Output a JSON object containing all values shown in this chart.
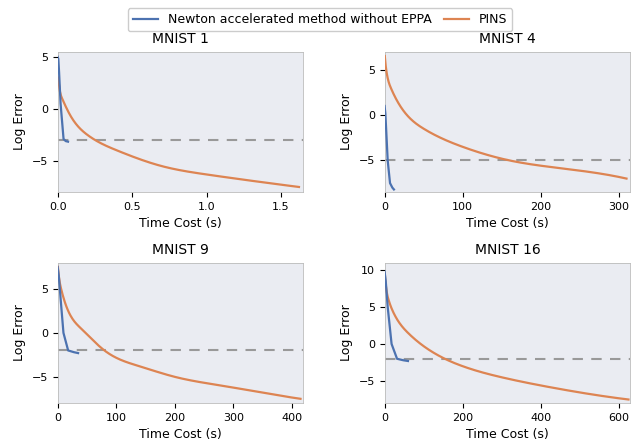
{
  "panels": [
    {
      "title": "MNIST 1",
      "xlim": [
        0,
        1.65
      ],
      "ylim": [
        -8,
        5.5
      ],
      "xticks": [
        0.0,
        0.5,
        1.0,
        1.5
      ],
      "yticks": [
        -5,
        0,
        5
      ],
      "dashed_y": -3.0,
      "blue_x": [
        0.0,
        0.005,
        0.01,
        0.02,
        0.04,
        0.055,
        0.07
      ],
      "blue_y": [
        5.0,
        4.8,
        3.5,
        0.5,
        -2.9,
        -3.1,
        -3.15
      ],
      "orange_x": [
        0.003,
        0.005,
        0.01,
        0.03,
        0.08,
        0.2,
        0.4,
        0.7,
        1.0,
        1.3,
        1.62
      ],
      "orange_y": [
        3.0,
        2.8,
        2.2,
        1.0,
        -0.5,
        -2.5,
        -4.0,
        -5.5,
        -6.3,
        -6.9,
        -7.5
      ]
    },
    {
      "title": "MNIST 4",
      "xlim": [
        0,
        315
      ],
      "ylim": [
        -8.5,
        7
      ],
      "xticks": [
        0,
        100,
        200,
        300
      ],
      "yticks": [
        -5,
        0,
        5
      ],
      "dashed_y": -5.0,
      "blue_x": [
        0.0,
        1,
        2,
        4,
        7,
        10,
        12
      ],
      "blue_y": [
        1.0,
        0.2,
        -1.5,
        -5.0,
        -7.5,
        -8.0,
        -8.2
      ],
      "orange_x": [
        0.3,
        1,
        3,
        8,
        20,
        50,
        100,
        160,
        220,
        280,
        310
      ],
      "orange_y": [
        6.5,
        5.8,
        4.5,
        3.0,
        1.0,
        -1.5,
        -3.5,
        -5.0,
        -5.8,
        -6.5,
        -7.0
      ]
    },
    {
      "title": "MNIST 9",
      "xlim": [
        0,
        420
      ],
      "ylim": [
        -8,
        8
      ],
      "xticks": [
        0,
        100,
        200,
        300,
        400
      ],
      "yticks": [
        -5,
        0,
        5
      ],
      "dashed_y": -2.0,
      "blue_x": [
        0.0,
        2,
        5,
        10,
        18,
        28,
        35
      ],
      "blue_y": [
        7.5,
        6.5,
        4.0,
        0.0,
        -2.0,
        -2.2,
        -2.3
      ],
      "orange_x": [
        0.5,
        2,
        6,
        15,
        40,
        80,
        140,
        200,
        280,
        350,
        415
      ],
      "orange_y": [
        7.5,
        6.5,
        5.0,
        3.0,
        0.5,
        -2.0,
        -3.8,
        -5.0,
        -6.0,
        -6.8,
        -7.5
      ]
    },
    {
      "title": "MNIST 16",
      "xlim": [
        0,
        630
      ],
      "ylim": [
        -8,
        11
      ],
      "xticks": [
        0,
        200,
        400,
        600
      ],
      "yticks": [
        -5,
        0,
        5,
        10
      ],
      "dashed_y": -2.0,
      "blue_x": [
        0.0,
        3,
        8,
        18,
        32,
        48,
        60
      ],
      "blue_y": [
        9.8,
        8.5,
        5.0,
        0.0,
        -2.0,
        -2.2,
        -2.3
      ],
      "orange_x": [
        0.5,
        3,
        10,
        25,
        60,
        120,
        200,
        300,
        420,
        530,
        625
      ],
      "orange_y": [
        9.5,
        8.0,
        6.0,
        4.0,
        1.5,
        -1.0,
        -3.0,
        -4.5,
        -5.8,
        -6.8,
        -7.5
      ]
    }
  ],
  "blue_color": "#4C72B0",
  "orange_color": "#DD8452",
  "dashed_color": "#999999",
  "bg_color": "#EAECF2",
  "legend_labels": [
    "Newton accelerated method without EPPA",
    "PINS"
  ],
  "xlabel": "Time Cost (s)",
  "ylabel": "Log Error",
  "title_fontsize": 10,
  "label_fontsize": 9,
  "tick_fontsize": 8,
  "legend_fontsize": 9,
  "line_width": 1.6
}
